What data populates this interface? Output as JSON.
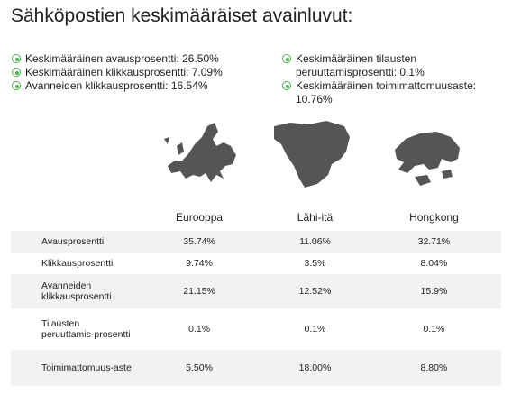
{
  "title": "Sähköpostien keskimääräiset avainluvut:",
  "summary_left": [
    "Keskimääräinen avausprosentti: 26.50%",
    "Keskimääräinen klikkausprosentti: 7.09%",
    "Avanneiden klikkausprosentti: 16.54%"
  ],
  "summary_right": [
    "Keskimääräinen tilausten peruuttamisprosentti: 0.1%",
    "Keskimääräinen toimimattomuusaste: 10.76%"
  ],
  "table": {
    "columns": [
      "Eurooppa",
      "Lähi-itä",
      "Hongkong"
    ],
    "rows": [
      [
        "Avausprosentti",
        "35.74%",
        "11.06%",
        "32.71%"
      ],
      [
        "Klikkausprosentti",
        "9.74%",
        "3.5%",
        "8.04%"
      ],
      [
        "Avanneiden klikkausprosentti",
        "21.15%",
        "12.52%",
        "15.9%"
      ],
      [
        "Tilausten peruuttamis-prosentti",
        "0.1%",
        "0.1%",
        "0.1%"
      ],
      [
        "Toimimattomuus-aste",
        "5.50%",
        "18.00%",
        "8.80%"
      ]
    ]
  }
}
